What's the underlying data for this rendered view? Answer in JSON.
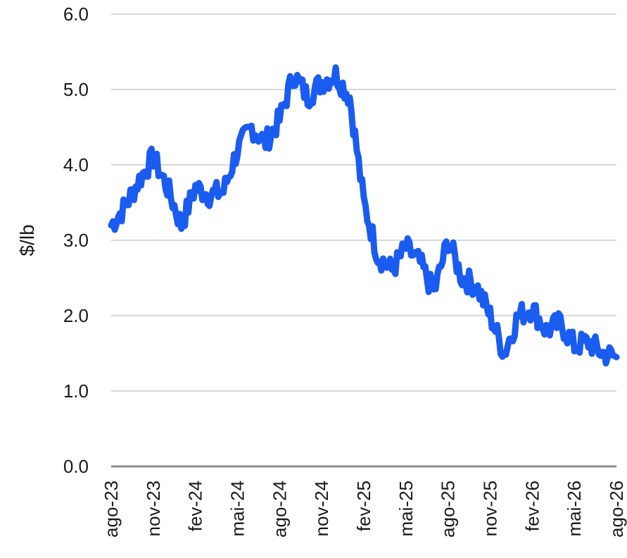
{
  "chart_data": {
    "type": "line",
    "ylabel": "$/lb",
    "xlabel": "",
    "ylim": [
      0,
      6
    ],
    "yticks": [
      "0.0",
      "1.0",
      "2.0",
      "3.0",
      "4.0",
      "5.0",
      "6.0"
    ],
    "xticks": [
      "ago-23",
      "nov-23",
      "fev-24",
      "mai-24",
      "ago-24",
      "nov-24",
      "fev-25",
      "mai-25",
      "ago-25",
      "nov-25",
      "fev-26",
      "mai-26",
      "ago-26"
    ],
    "grid": true,
    "colors": {
      "line": "#1a5cf0",
      "grid": "#d9d9d9",
      "axis": "#8c8c8c"
    },
    "series": [
      {
        "x": [
          "ago-23",
          "set-23",
          "out-23",
          "nov-23",
          "dez-23",
          "jan-24",
          "fev-24",
          "mar-24",
          "abr-24",
          "mai-24",
          "jun-24",
          "jul-24",
          "ago-24",
          "set-24",
          "out-24",
          "nov-24",
          "dez-24",
          "jan-25",
          "fev-25",
          "mar-25",
          "abr-25",
          "mai-25",
          "jun-25",
          "jul-25",
          "ago-25",
          "set-25",
          "out-25",
          "nov-25",
          "dez-25",
          "jan-26",
          "fev-26",
          "mar-26",
          "abr-26",
          "mai-26",
          "jun-26",
          "jul-26",
          "ago-26"
        ],
        "values": [
          3.2,
          3.45,
          3.8,
          4.1,
          3.7,
          3.2,
          3.7,
          3.6,
          3.65,
          4.2,
          4.5,
          4.3,
          4.6,
          5.2,
          4.9,
          5.1,
          5.2,
          4.9,
          3.5,
          2.8,
          2.6,
          2.9,
          2.7,
          2.3,
          3.0,
          2.5,
          2.4,
          2.0,
          1.5,
          2.0,
          2.1,
          1.8,
          1.9,
          1.6,
          1.65,
          1.5,
          1.45
        ]
      }
    ]
  }
}
